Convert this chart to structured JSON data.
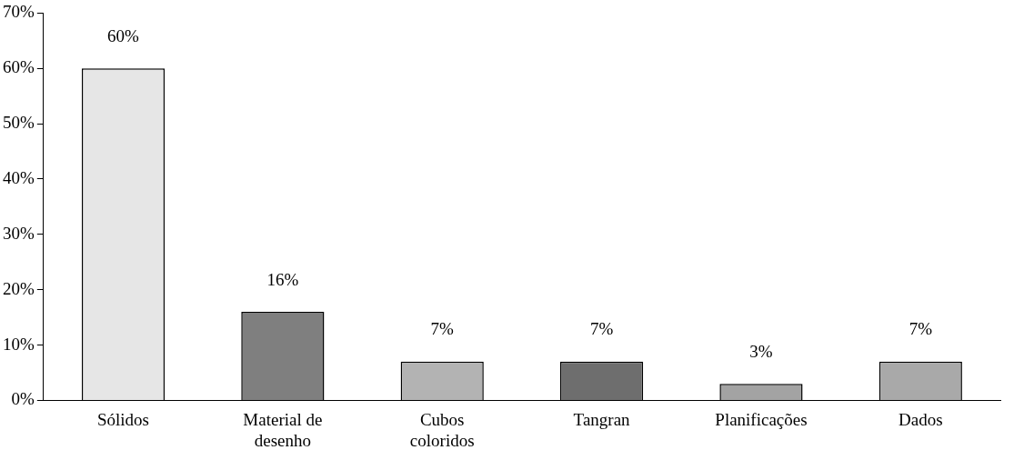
{
  "chart_data": {
    "type": "bar",
    "categories": [
      "Sólidos",
      "Material de desenho",
      "Cubos coloridos",
      "Tangran",
      "Planificações",
      "Dados"
    ],
    "values": [
      60,
      16,
      7,
      7,
      3,
      7
    ],
    "colors": [
      "#e6e6e6",
      "#7f7f7f",
      "#b3b3b3",
      "#6e6e6e",
      "#a3a3a3",
      "#a9a9a9"
    ],
    "value_labels": [
      "60%",
      "16%",
      "7%",
      "7%",
      "3%",
      "7%"
    ],
    "ylim": [
      0,
      70
    ],
    "yticks": [
      {
        "value": 0,
        "label": "0%"
      },
      {
        "value": 10,
        "label": "10%"
      },
      {
        "value": 20,
        "label": "20%"
      },
      {
        "value": 30,
        "label": "30%"
      },
      {
        "value": 40,
        "label": "40%"
      },
      {
        "value": 50,
        "label": "50%"
      },
      {
        "value": 60,
        "label": "60%"
      },
      {
        "value": 70,
        "label": "70%"
      }
    ],
    "grid": false,
    "legend": false
  }
}
